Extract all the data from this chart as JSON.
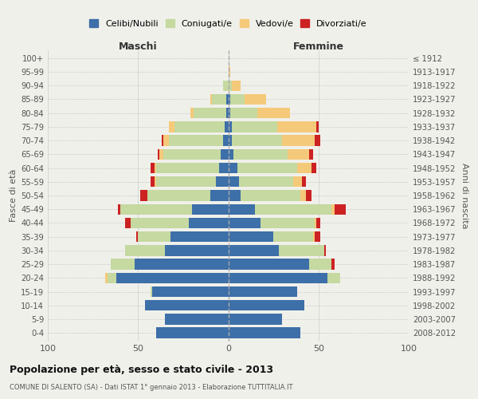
{
  "age_groups": [
    "0-4",
    "5-9",
    "10-14",
    "15-19",
    "20-24",
    "25-29",
    "30-34",
    "35-39",
    "40-44",
    "45-49",
    "50-54",
    "55-59",
    "60-64",
    "65-69",
    "70-74",
    "75-79",
    "80-84",
    "85-89",
    "90-94",
    "95-99",
    "100+"
  ],
  "birth_years": [
    "2008-2012",
    "2003-2007",
    "1998-2002",
    "1993-1997",
    "1988-1992",
    "1983-1987",
    "1978-1982",
    "1973-1977",
    "1968-1972",
    "1963-1967",
    "1958-1962",
    "1953-1957",
    "1948-1952",
    "1943-1947",
    "1938-1942",
    "1933-1937",
    "1928-1932",
    "1923-1927",
    "1918-1922",
    "1913-1917",
    "≤ 1912"
  ],
  "males": {
    "celibi": [
      40,
      35,
      46,
      42,
      62,
      52,
      35,
      32,
      22,
      20,
      10,
      7,
      5,
      4,
      3,
      2,
      1,
      1,
      0,
      0,
      0
    ],
    "coniugati": [
      0,
      0,
      0,
      1,
      5,
      13,
      22,
      18,
      32,
      40,
      35,
      33,
      35,
      32,
      30,
      28,
      18,
      8,
      3,
      0,
      0
    ],
    "vedovi": [
      0,
      0,
      0,
      0,
      1,
      0,
      0,
      0,
      0,
      0,
      0,
      1,
      1,
      2,
      3,
      3,
      2,
      1,
      0,
      0,
      0
    ],
    "divorziati": [
      0,
      0,
      0,
      0,
      0,
      0,
      0,
      1,
      3,
      1,
      4,
      2,
      2,
      1,
      1,
      0,
      0,
      0,
      0,
      0,
      0
    ]
  },
  "females": {
    "nubili": [
      40,
      30,
      42,
      38,
      55,
      45,
      28,
      25,
      18,
      15,
      7,
      6,
      5,
      3,
      2,
      2,
      1,
      1,
      0,
      0,
      0
    ],
    "coniugate": [
      0,
      0,
      0,
      0,
      7,
      12,
      25,
      22,
      30,
      42,
      33,
      30,
      33,
      30,
      28,
      25,
      15,
      8,
      2,
      0,
      0
    ],
    "vedove": [
      0,
      0,
      0,
      0,
      0,
      0,
      0,
      1,
      1,
      2,
      3,
      5,
      8,
      12,
      18,
      22,
      18,
      12,
      5,
      1,
      0
    ],
    "divorziate": [
      0,
      0,
      0,
      0,
      0,
      2,
      1,
      3,
      2,
      6,
      3,
      2,
      3,
      2,
      3,
      1,
      0,
      0,
      0,
      0,
      0
    ]
  },
  "colors": {
    "celibi_nubili": "#3d6fa8",
    "coniugati": "#c5d9a0",
    "vedovi": "#f5c97a",
    "divorziati": "#cc2222"
  },
  "title": "Popolazione per età, sesso e stato civile - 2013",
  "subtitle": "COMUNE DI SALENTO (SA) - Dati ISTAT 1° gennaio 2013 - Elaborazione TUTTITALIA.IT",
  "xlabel_left": "Maschi",
  "xlabel_right": "Femmine",
  "ylabel_left": "Fasce di età",
  "ylabel_right": "Anni di nascita",
  "xlim": 100,
  "bg_color": "#f0f0eb",
  "grid_color": "#cccccc"
}
